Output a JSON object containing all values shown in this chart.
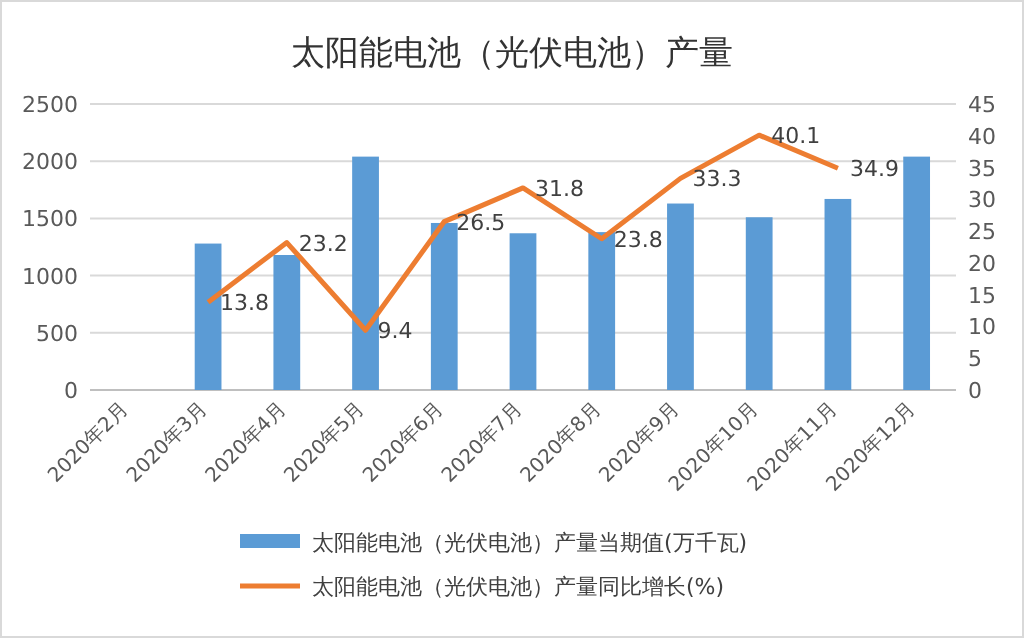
{
  "chart_data": {
    "type": "bar",
    "title": "太阳能电池（光伏电池）产量",
    "categories": [
      "2020年2月",
      "2020年3月",
      "2020年4月",
      "2020年5月",
      "2020年6月",
      "2020年7月",
      "2020年8月",
      "2020年9月",
      "2020年10月",
      "2020年11月",
      "2020年12月"
    ],
    "series": [
      {
        "name": "太阳能电池（光伏电池）产量当期值(万千瓦)",
        "color": "#5b9bd5",
        "values": [
          null,
          1280,
          1180,
          2040,
          1460,
          1370,
          1380,
          1630,
          1510,
          1670,
          2040
        ]
      },
      {
        "name": "太阳能电池（光伏电池）产量同比增长(%)",
        "type": "line",
        "axis": "y2",
        "color": "#ed7d31",
        "values": [
          null,
          13.8,
          23.2,
          9.4,
          26.5,
          31.8,
          23.8,
          33.3,
          40.1,
          34.9,
          null
        ],
        "value_labels": [
          null,
          "13.8",
          "23.2",
          "9.4",
          "26.5",
          "31.8",
          "23.8",
          "33.3",
          "40.1",
          "34.9",
          null
        ]
      }
    ],
    "ylim": [
      0,
      2500
    ],
    "yticks": [
      0,
      500,
      1000,
      1500,
      2000,
      2500
    ],
    "y2lim": [
      0,
      45
    ],
    "y2ticks": [
      0,
      5,
      10,
      15,
      20,
      25,
      30,
      35,
      40,
      45
    ],
    "grid": "y",
    "legend": "bottom"
  }
}
